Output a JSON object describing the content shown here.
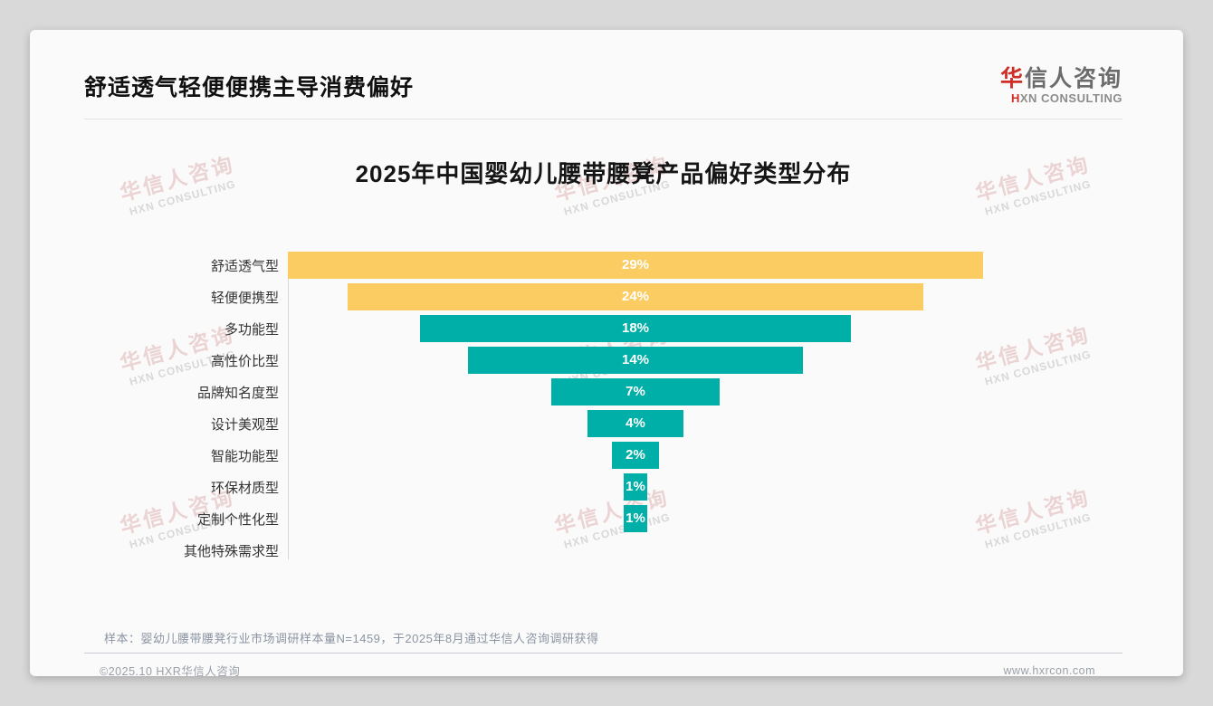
{
  "header": {
    "title": "舒适透气轻便便携主导消费偏好",
    "logo": {
      "name_first_char": "华",
      "name_rest": "信人咨询",
      "subtitle_first": "H",
      "subtitle_rest": "XN CONSULTING"
    }
  },
  "watermark": {
    "line1": "华信人咨询",
    "line2": "HXN CONSULTING"
  },
  "chart_data": {
    "type": "bar",
    "orientation": "horizontal-centered-funnel",
    "title": "2025年中国婴幼儿腰带腰凳产品偏好类型分布",
    "categories": [
      "舒适透气型",
      "轻便便携型",
      "多功能型",
      "高性价比型",
      "品牌知名度型",
      "设计美观型",
      "智能功能型",
      "环保材质型",
      "定制个性化型",
      "其他特殊需求型"
    ],
    "values": [
      29,
      24,
      18,
      14,
      7,
      4,
      2,
      1,
      1,
      0
    ],
    "value_labels": [
      "29%",
      "24%",
      "18%",
      "14%",
      "7%",
      "4%",
      "2%",
      "1%",
      "1%",
      ""
    ],
    "bar_colors": [
      "#FBCC62",
      "#FBCC62",
      "#00AFA7",
      "#00AFA7",
      "#00AFA7",
      "#00AFA7",
      "#00AFA7",
      "#00AFA7",
      "#00AFA7",
      "#00AFA7"
    ],
    "value_label_color": "#ffffff",
    "xlim": [
      0,
      29
    ],
    "axis_line": true,
    "legend": "none",
    "grid": "off"
  },
  "footnote": {
    "sample_note": "样本：婴幼儿腰带腰凳行业市场调研样本量N=1459，于2025年8月通过华信人咨询调研获得"
  },
  "footer": {
    "copyright": "©2025.10 HXR华信人咨询",
    "website": "www.hxrcon.com"
  }
}
